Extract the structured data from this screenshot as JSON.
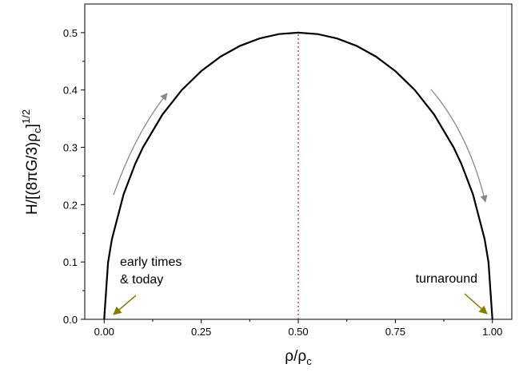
{
  "chart_data": {
    "type": "line",
    "title": "",
    "xlabel": {
      "base": "ρ/ρ",
      "sub": "c"
    },
    "ylabel": {
      "pre": "H/[(8",
      "pi": "π",
      "mid": "G/3)ρ",
      "sub": "c",
      "close": "]",
      "sup": "1/2"
    },
    "xlim": [
      -0.05,
      1.05
    ],
    "ylim": [
      0.0,
      0.55
    ],
    "xticks": [
      0.0,
      0.25,
      0.5,
      0.75,
      1.0
    ],
    "xtick_labels": [
      "0.00",
      "0.25",
      "0.50",
      "0.75",
      "1.00"
    ],
    "yticks": [
      0.0,
      0.1,
      0.2,
      0.3,
      0.4,
      0.5
    ],
    "ytick_labels": [
      "0.0",
      "0.1",
      "0.2",
      "0.3",
      "0.4",
      "0.5"
    ],
    "grid": false,
    "series": [
      {
        "x": [
          0.0,
          0.01,
          0.02,
          0.05,
          0.08,
          0.1,
          0.15,
          0.2,
          0.25,
          0.3,
          0.35,
          0.4,
          0.45,
          0.5,
          0.55,
          0.6,
          0.65,
          0.7,
          0.75,
          0.8,
          0.85,
          0.9,
          0.92,
          0.95,
          0.98,
          0.99,
          1.0
        ],
        "y": [
          0.0,
          0.0995,
          0.14,
          0.2179,
          0.2713,
          0.3,
          0.3571,
          0.4,
          0.433,
          0.4583,
          0.477,
          0.4899,
          0.4975,
          0.5,
          0.4975,
          0.4899,
          0.477,
          0.4583,
          0.433,
          0.4,
          0.3571,
          0.3,
          0.2713,
          0.2179,
          0.14,
          0.0995,
          0.0
        ],
        "color": "#000000"
      }
    ],
    "reference_line": {
      "x": 0.5,
      "color": "#b0509a",
      "style": "dotted"
    },
    "annotations": [
      {
        "lines": [
          "early times",
          "& today"
        ]
      },
      {
        "lines": [
          "turnaround"
        ]
      }
    ],
    "arrow_colors": {
      "motion": "#888888",
      "pointer": "#808000"
    }
  }
}
